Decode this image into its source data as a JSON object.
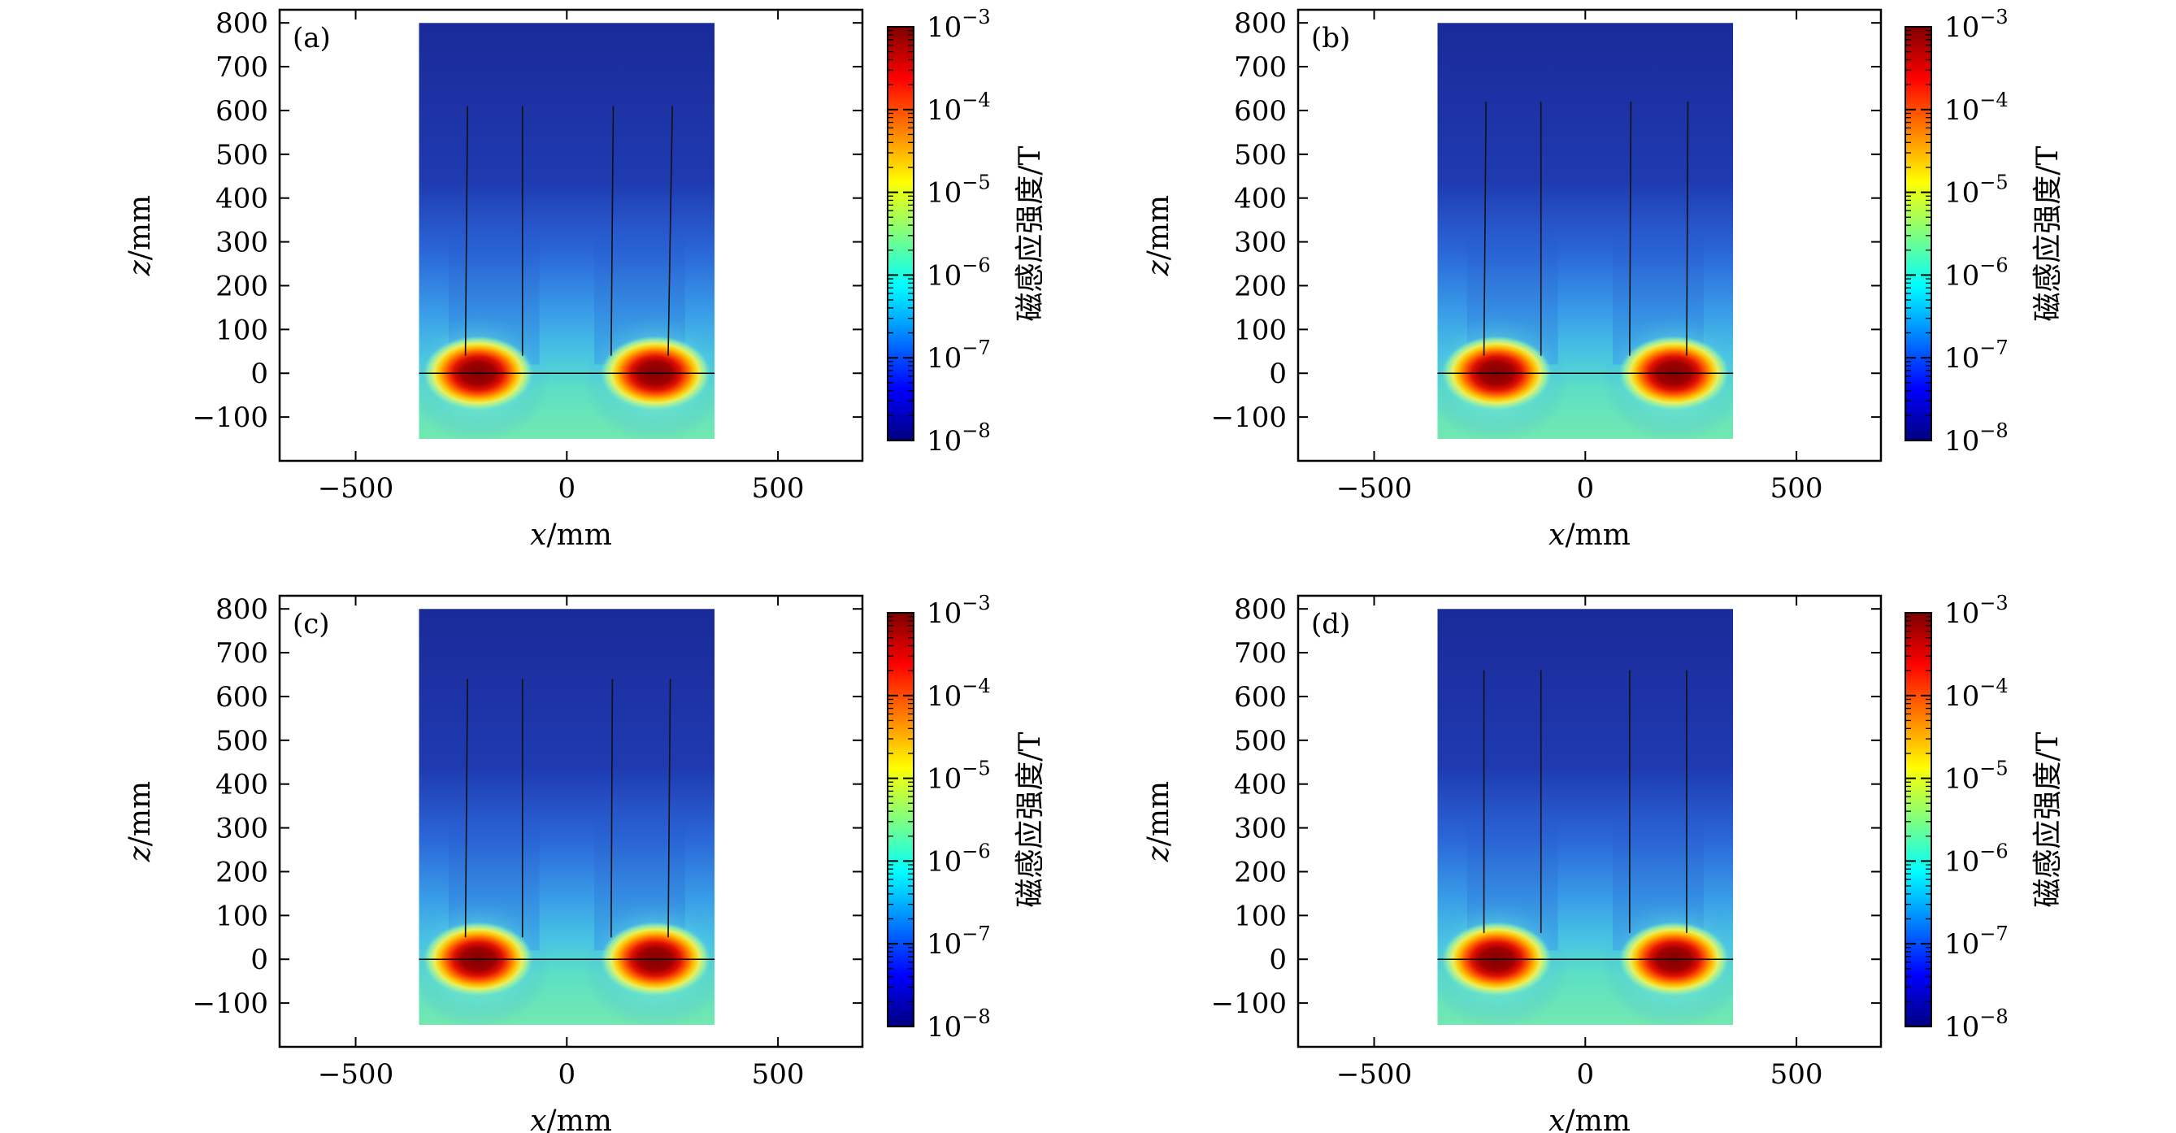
{
  "figure": {
    "colorbar_label": "磁感应强度/T",
    "colormap": [
      "#00007f",
      "#0000ff",
      "#007fff",
      "#00ffff",
      "#7fff7f",
      "#ffff00",
      "#ff7f00",
      "#ff0000",
      "#7f0000"
    ],
    "colorbar_ticks": [
      {
        "base": "10",
        "exp": "−3"
      },
      {
        "base": "10",
        "exp": "−4"
      },
      {
        "base": "10",
        "exp": "−5"
      },
      {
        "base": "10",
        "exp": "−6"
      },
      {
        "base": "10",
        "exp": "−7"
      },
      {
        "base": "10",
        "exp": "−8"
      }
    ]
  },
  "chart_data": [
    {
      "type": "heatmap",
      "panel_label": "(a)",
      "xlabel_var": "x",
      "xlabel_unit": "/mm",
      "ylabel_var": "z",
      "ylabel_unit": "/mm",
      "xlim": [
        -680,
        700
      ],
      "ylim": [
        -200,
        830
      ],
      "xticks": [
        "−500",
        "0",
        "500"
      ],
      "xtick_values": [
        -500,
        0,
        500
      ],
      "yticks": [
        "800",
        "700",
        "600",
        "500",
        "400",
        "300",
        "200",
        "100",
        "0",
        "−100"
      ],
      "ytick_values": [
        800,
        700,
        600,
        500,
        400,
        300,
        200,
        100,
        0,
        -100
      ],
      "domain_x": [
        -350,
        350
      ],
      "domain_z": [
        -150,
        800
      ],
      "colorbar_range_T": [
        1e-08,
        0.001
      ],
      "colorbar_scale": "log",
      "conductor_lines": [
        {
          "x": [
            -240,
            -235
          ],
          "z": [
            40,
            610
          ]
        },
        {
          "x": [
            -105,
            -105
          ],
          "z": [
            40,
            610
          ]
        },
        {
          "x": [
            105,
            110
          ],
          "z": [
            40,
            610
          ]
        },
        {
          "x": [
            240,
            250
          ],
          "z": [
            40,
            610
          ]
        }
      ],
      "hotspots": [
        {
          "center_x": -210,
          "center_z": 0
        },
        {
          "center_x": 210,
          "center_z": 0
        }
      ],
      "surface_line_z": 0
    },
    {
      "type": "heatmap",
      "panel_label": "(b)",
      "xlabel_var": "x",
      "xlabel_unit": "/mm",
      "ylabel_var": "z",
      "ylabel_unit": "/mm",
      "xlim": [
        -680,
        700
      ],
      "ylim": [
        -200,
        830
      ],
      "xticks": [
        "−500",
        "0",
        "500"
      ],
      "xtick_values": [
        -500,
        0,
        500
      ],
      "yticks": [
        "800",
        "700",
        "600",
        "500",
        "400",
        "300",
        "200",
        "100",
        "0",
        "−100"
      ],
      "ytick_values": [
        800,
        700,
        600,
        500,
        400,
        300,
        200,
        100,
        0,
        -100
      ],
      "domain_x": [
        -350,
        350
      ],
      "domain_z": [
        -150,
        800
      ],
      "colorbar_range_T": [
        1e-08,
        0.001
      ],
      "colorbar_scale": "log",
      "conductor_lines": [
        {
          "x": [
            -240,
            -235
          ],
          "z": [
            40,
            620
          ]
        },
        {
          "x": [
            -105,
            -105
          ],
          "z": [
            40,
            620
          ]
        },
        {
          "x": [
            105,
            108
          ],
          "z": [
            40,
            620
          ]
        },
        {
          "x": [
            240,
            243
          ],
          "z": [
            40,
            620
          ]
        }
      ],
      "hotspots": [
        {
          "center_x": -210,
          "center_z": 0
        },
        {
          "center_x": 210,
          "center_z": 0
        }
      ],
      "surface_line_z": 0
    },
    {
      "type": "heatmap",
      "panel_label": "(c)",
      "xlabel_var": "x",
      "xlabel_unit": "/mm",
      "ylabel_var": "z",
      "ylabel_unit": "/mm",
      "xlim": [
        -680,
        700
      ],
      "ylim": [
        -200,
        830
      ],
      "xticks": [
        "−500",
        "0",
        "500"
      ],
      "xtick_values": [
        -500,
        0,
        500
      ],
      "yticks": [
        "800",
        "700",
        "600",
        "500",
        "400",
        "300",
        "200",
        "100",
        "0",
        "−100"
      ],
      "ytick_values": [
        800,
        700,
        600,
        500,
        400,
        300,
        200,
        100,
        0,
        -100
      ],
      "domain_x": [
        -350,
        350
      ],
      "domain_z": [
        -150,
        800
      ],
      "colorbar_range_T": [
        1e-08,
        0.001
      ],
      "colorbar_scale": "log",
      "conductor_lines": [
        {
          "x": [
            -240,
            -235
          ],
          "z": [
            50,
            640
          ]
        },
        {
          "x": [
            -105,
            -105
          ],
          "z": [
            50,
            640
          ]
        },
        {
          "x": [
            105,
            108
          ],
          "z": [
            50,
            640
          ]
        },
        {
          "x": [
            240,
            245
          ],
          "z": [
            50,
            640
          ]
        }
      ],
      "hotspots": [
        {
          "center_x": -210,
          "center_z": 0
        },
        {
          "center_x": 210,
          "center_z": 0
        }
      ],
      "surface_line_z": 0
    },
    {
      "type": "heatmap",
      "panel_label": "(d)",
      "xlabel_var": "x",
      "xlabel_unit": "/mm",
      "ylabel_var": "z",
      "ylabel_unit": "/mm",
      "xlim": [
        -680,
        700
      ],
      "ylim": [
        -200,
        830
      ],
      "xticks": [
        "−500",
        "0",
        "500"
      ],
      "xtick_values": [
        -500,
        0,
        500
      ],
      "yticks": [
        "800",
        "700",
        "600",
        "500",
        "400",
        "300",
        "200",
        "100",
        "0",
        "−100"
      ],
      "ytick_values": [
        800,
        700,
        600,
        500,
        400,
        300,
        200,
        100,
        0,
        -100
      ],
      "domain_x": [
        -350,
        350
      ],
      "domain_z": [
        -150,
        800
      ],
      "colorbar_range_T": [
        1e-08,
        0.001
      ],
      "colorbar_scale": "log",
      "conductor_lines": [
        {
          "x": [
            -240,
            -240
          ],
          "z": [
            60,
            660
          ]
        },
        {
          "x": [
            -105,
            -105
          ],
          "z": [
            60,
            660
          ]
        },
        {
          "x": [
            105,
            105
          ],
          "z": [
            60,
            660
          ]
        },
        {
          "x": [
            240,
            240
          ],
          "z": [
            60,
            660
          ]
        }
      ],
      "hotspots": [
        {
          "center_x": -210,
          "center_z": 0
        },
        {
          "center_x": 210,
          "center_z": 0
        }
      ],
      "surface_line_z": 0
    }
  ]
}
